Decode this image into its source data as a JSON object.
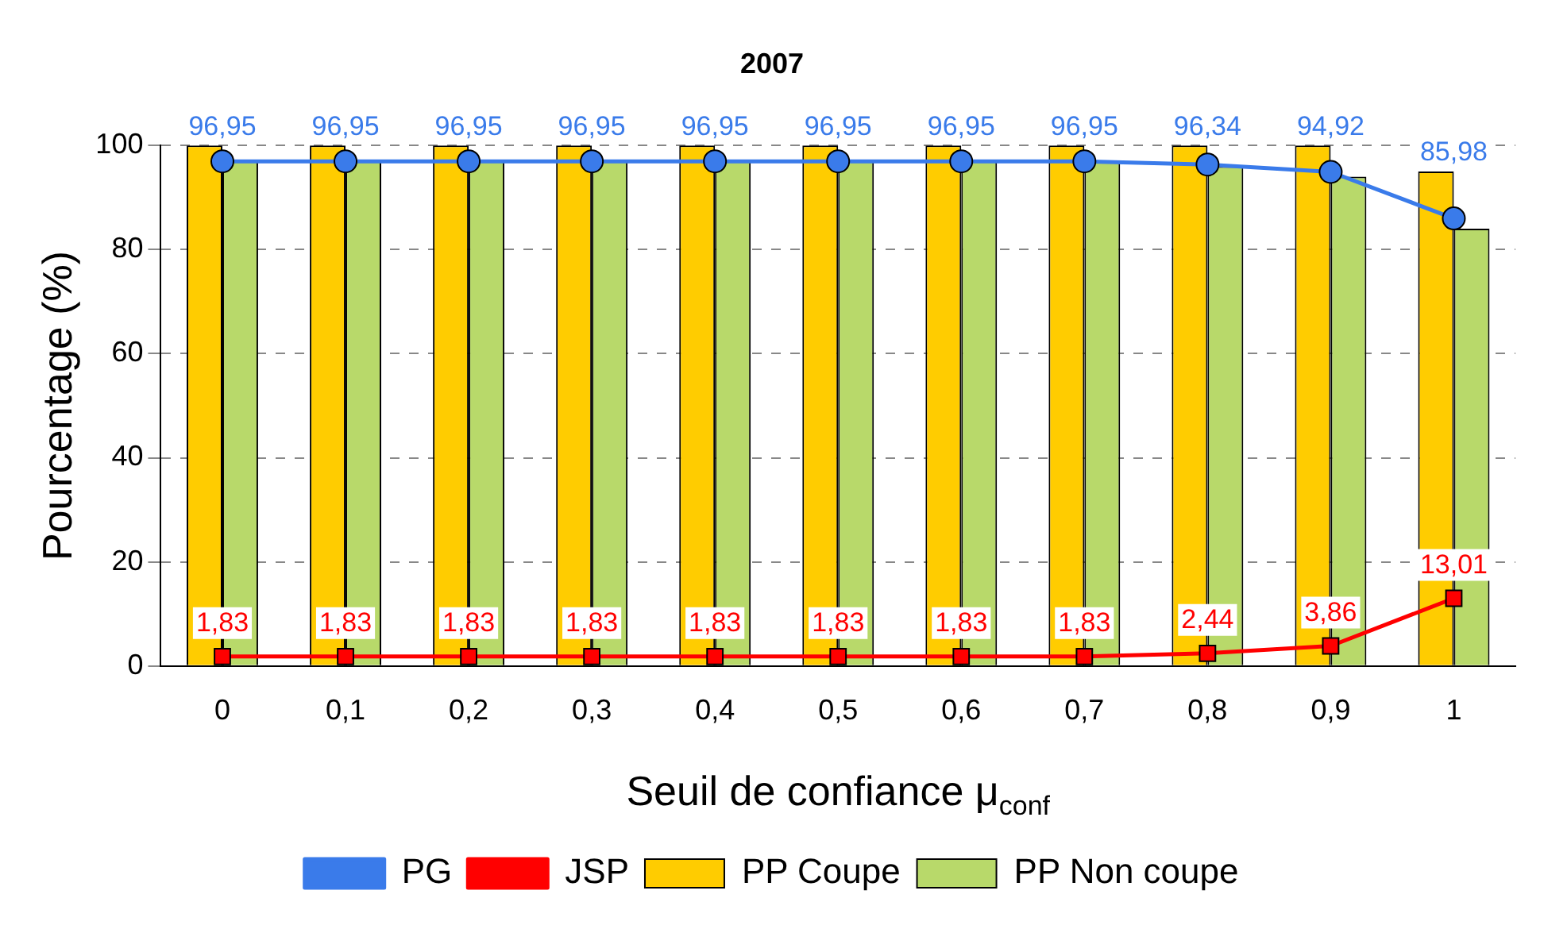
{
  "chart_data": {
    "type": "bar",
    "title": "2007",
    "xlabel": "Seuil de confiance μ$_{conf}$",
    "ylabel": "Pourcentage (%)",
    "categories": [
      "0",
      "0,1",
      "0,2",
      "0,3",
      "0,4",
      "0,5",
      "0,6",
      "0,7",
      "0,8",
      "0,9",
      "1"
    ],
    "series": [
      {
        "name": "PP Coupe",
        "color": "#ffcc00",
        "values": [
          100,
          100,
          100,
          100,
          100,
          100,
          100,
          100,
          100,
          100,
          95
        ]
      },
      {
        "name": "PP Non coupe",
        "color": "#b8d96a",
        "values": [
          97,
          97,
          97,
          97,
          97,
          97,
          97,
          97,
          96,
          94,
          84
        ]
      },
      {
        "name": "PG",
        "type": "line",
        "marker": "circle",
        "color": "#3a7bea",
        "values": [
          96.95,
          96.95,
          96.95,
          96.95,
          96.95,
          96.95,
          96.95,
          96.95,
          96.34,
          94.92,
          85.98
        ],
        "value_labels": [
          "96,95",
          "96,95",
          "96,95",
          "96,95",
          "96,95",
          "96,95",
          "96,95",
          "96,95",
          "96,34",
          "94,92",
          "85,98"
        ]
      },
      {
        "name": "JSP",
        "type": "line",
        "marker": "square",
        "color": "#ff0000",
        "values": [
          1.83,
          1.83,
          1.83,
          1.83,
          1.83,
          1.83,
          1.83,
          1.83,
          2.44,
          3.86,
          13.01
        ],
        "value_labels": [
          "1,83",
          "1,83",
          "1,83",
          "1,83",
          "1,83",
          "1,83",
          "1,83",
          "1,83",
          "2,44",
          "3,86",
          "13,01"
        ]
      }
    ],
    "ylim": [
      0,
      100
    ],
    "yticks": [
      0,
      20,
      40,
      60,
      80,
      100
    ],
    "grid": "y",
    "legend": "bottom"
  }
}
